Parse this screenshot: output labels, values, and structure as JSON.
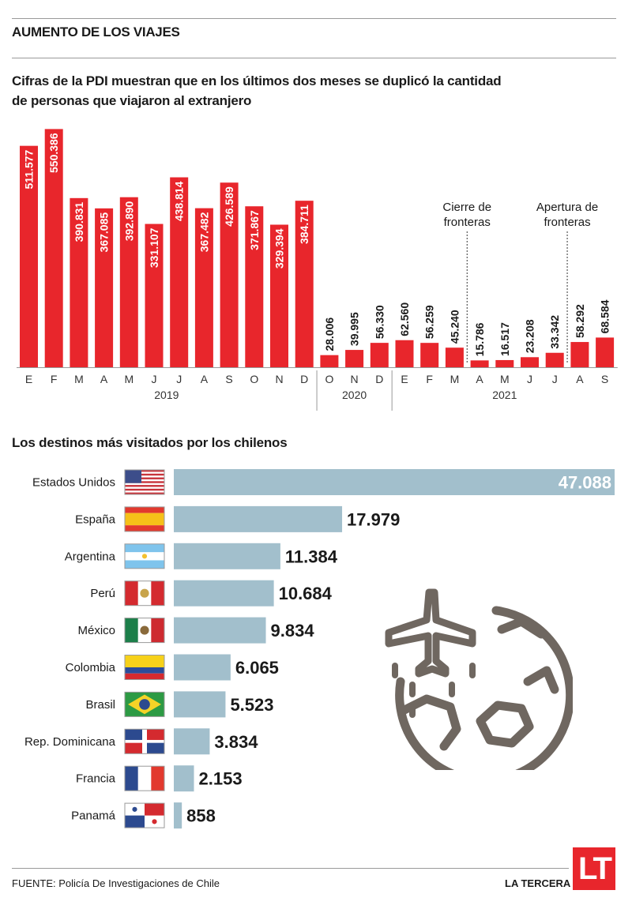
{
  "header": {
    "section_title": "AUMENTO DE LOS VIAJES",
    "headline": "Cifras de la PDI muestran que en los últimos dos meses se duplicó la cantidad de personas que viajaron al extranjero"
  },
  "chart_data": [
    {
      "type": "bar",
      "title": "",
      "color": "#e8262c",
      "categories": [
        "E",
        "F",
        "M",
        "A",
        "M",
        "J",
        "J",
        "A",
        "S",
        "O",
        "N",
        "D",
        "O",
        "N",
        "D",
        "E",
        "F",
        "M",
        "A",
        "M",
        "J",
        "J",
        "A",
        "S"
      ],
      "year_groups": [
        {
          "label": "2019",
          "count": 12
        },
        {
          "label": "2020",
          "count": 3
        },
        {
          "label": "2021",
          "count": 9
        }
      ],
      "values": [
        511577,
        550386,
        390831,
        367085,
        392890,
        331107,
        438814,
        367482,
        426589,
        371867,
        329394,
        384711,
        28006,
        39995,
        56330,
        62560,
        56259,
        45240,
        15786,
        16517,
        23208,
        33342,
        58292,
        68584
      ],
      "value_labels": [
        "511.577",
        "550.386",
        "390.831",
        "367.085",
        "392.890",
        "331.107",
        "438.814",
        "367.482",
        "426.589",
        "371.867",
        "329.394",
        "384.711",
        "28.006",
        "39.995",
        "56.330",
        "62.560",
        "56.259",
        "45.240",
        "15.786",
        "16.517",
        "23.208",
        "33.342",
        "58.292",
        "68.584"
      ],
      "annotations": [
        {
          "text_line1": "Cierre de",
          "text_line2": "fronteras",
          "between": [
            17,
            18
          ]
        },
        {
          "text_line1": "Apertura de",
          "text_line2": "fronteras",
          "between": [
            21,
            22
          ]
        }
      ]
    },
    {
      "type": "bar",
      "orientation": "horizontal",
      "title": "Los destinos más visitados por los chilenos",
      "color": "#a2bfcc",
      "categories": [
        "Estados Unidos",
        "España",
        "Argentina",
        "Perú",
        "México",
        "Colombia",
        "Brasil",
        "Rep. Dominicana",
        "Francia",
        "Panamá"
      ],
      "values": [
        47088,
        17979,
        11384,
        10684,
        9834,
        6065,
        5523,
        3834,
        2153,
        858
      ],
      "value_labels": [
        "47.088",
        "17.979",
        "11.384",
        "10.684",
        "9.834",
        "6.065",
        "5.523",
        "3.834",
        "2.153",
        "858"
      ],
      "flags": [
        "usa-flag-icon",
        "spain-flag-icon",
        "argentina-flag-icon",
        "peru-flag-icon",
        "mexico-flag-icon",
        "colombia-flag-icon",
        "brazil-flag-icon",
        "dominican-republic-flag-icon",
        "france-flag-icon",
        "panama-flag-icon"
      ]
    }
  ],
  "footer": {
    "source": "FUENTE: Policía De Investigaciones de Chile",
    "brand": "LA TERCERA",
    "logo_text": "LT"
  },
  "decoration": {
    "icon": "plane-globe-icon",
    "stroke_color": "#6f6760"
  }
}
